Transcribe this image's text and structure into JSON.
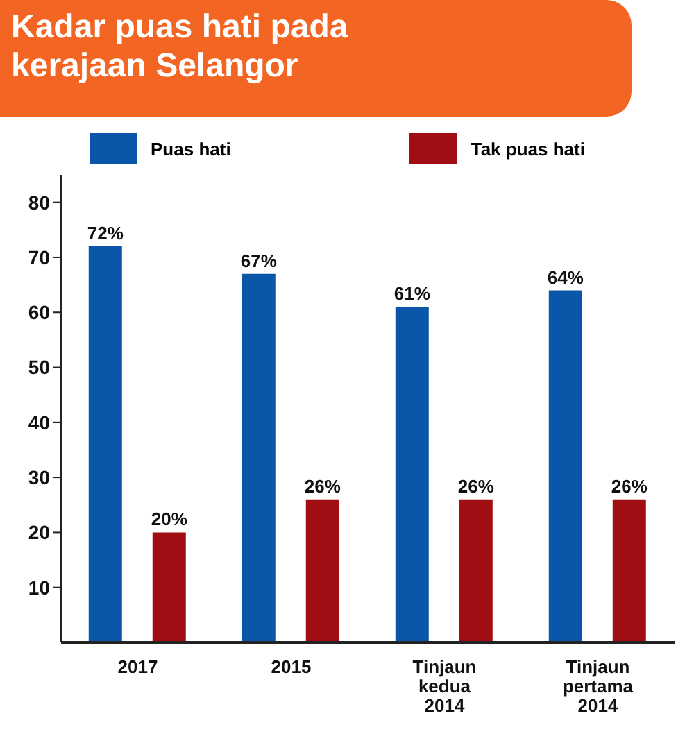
{
  "chart_data": {
    "type": "bar",
    "title": "Kadar puas hati pada kerajaan Selangor",
    "categories": [
      "2017",
      "2015",
      "Tinjaun\nkedua\n2014",
      "Tinjaun\npertama\n2014"
    ],
    "series": [
      {
        "name": "Puas hati",
        "color": "#0a56a8",
        "values": [
          72,
          67,
          61,
          64
        ],
        "value_labels": [
          "72%",
          "67%",
          "61%",
          "64%"
        ]
      },
      {
        "name": "Tak puas hati",
        "color": "#a00d12",
        "values": [
          20,
          26,
          26,
          26
        ],
        "value_labels": [
          "20%",
          "26%",
          "26%",
          "26%"
        ]
      }
    ],
    "ylim": [
      0,
      85
    ],
    "yticks": [
      10,
      20,
      30,
      40,
      50,
      60,
      70,
      80
    ],
    "legend": "top",
    "grid": false
  }
}
